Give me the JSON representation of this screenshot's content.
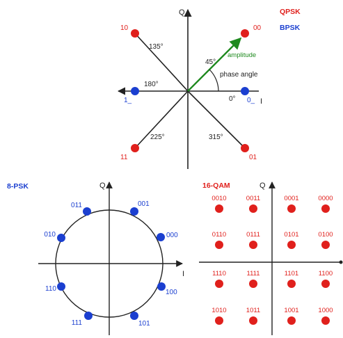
{
  "colors": {
    "axis": "#222222",
    "qpsk_point": "#e0201c",
    "bpsk_point": "#1b3fd0",
    "qpsk_text": "#e0201c",
    "bpsk_text": "#1b3fd0",
    "amplitude_vector": "#1f8a1f",
    "psk8_label": "#1b3fd0",
    "qam16_label": "#e0201c",
    "psk8_point": "#1b3fd0",
    "qam16_point": "#e0201c"
  },
  "top": {
    "axis_q": "Q",
    "axis_i": "I",
    "legend_qpsk": "QPSK",
    "legend_bpsk": "BPSK",
    "qpsk_labels": {
      "q1": "00",
      "q2": "10",
      "q3": "11",
      "q4": "01"
    },
    "bpsk_labels": {
      "right": "0_",
      "left": "1_"
    },
    "angles": {
      "a45": "45°",
      "a135": "135°",
      "a180": "180°",
      "a0": "0°",
      "a225": "225°",
      "a315": "315°"
    },
    "amplitude_label": "amplitude",
    "phase_angle_label": "phase angle"
  },
  "psk8": {
    "title": "8-PSK",
    "axis_q": "Q",
    "axis_i": "I",
    "labels": {
      "p000": "000",
      "p001": "001",
      "p011": "011",
      "p010": "010",
      "p110": "110",
      "p111": "111",
      "p101": "101",
      "p100": "100"
    }
  },
  "qam16": {
    "title": "16-QAM",
    "axis_q": "Q",
    "rows": [
      [
        "0010",
        "0011",
        "0001",
        "0000"
      ],
      [
        "0110",
        "0111",
        "0101",
        "0100"
      ],
      [
        "1110",
        "1111",
        "1101",
        "1100"
      ],
      [
        "1010",
        "1011",
        "1001",
        "1000"
      ]
    ]
  }
}
